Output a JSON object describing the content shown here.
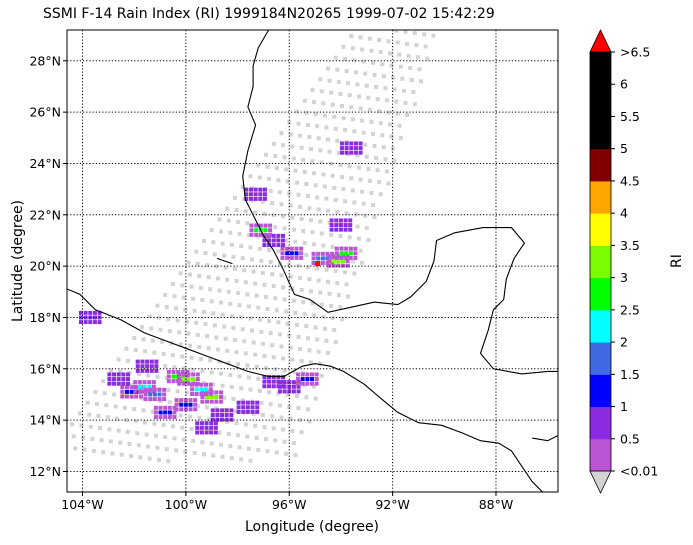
{
  "title": "SSMI F-14 Rain Index (RI) 1999184N20265 1999-07-02 15:42:29",
  "map": {
    "xlabel": "Longitude (degree)",
    "ylabel": "Latitude (degree)",
    "lon_range": [
      -104.6,
      -85.6
    ],
    "lat_range": [
      11.2,
      29.2
    ],
    "xticks": [
      {
        "value": -104,
        "label": "104°W"
      },
      {
        "value": -100,
        "label": "100°W"
      },
      {
        "value": -96,
        "label": "96°W"
      },
      {
        "value": -92,
        "label": "92°W"
      },
      {
        "value": -88,
        "label": "88°W"
      }
    ],
    "yticks": [
      {
        "value": 12,
        "label": "12°N"
      },
      {
        "value": 14,
        "label": "14°N"
      },
      {
        "value": 16,
        "label": "16°N"
      },
      {
        "value": 18,
        "label": "18°N"
      },
      {
        "value": 20,
        "label": "20°N"
      },
      {
        "value": 22,
        "label": "22°N"
      },
      {
        "value": 24,
        "label": "24°N"
      },
      {
        "value": 26,
        "label": "26°N"
      },
      {
        "value": 28,
        "label": "28°N"
      }
    ],
    "grid": true,
    "swath_color": "#d3d3d3",
    "storm_center": {
      "lon": -94.9,
      "lat": 20.1,
      "color": "#ff0000"
    }
  },
  "colorbar": {
    "label": "RI",
    "ticks": [
      "<0.01",
      "0.5",
      "1",
      "1.5",
      "2",
      "2.5",
      "3",
      "3.5",
      "4",
      "4.5",
      "5",
      "5.5",
      "6",
      ">6.5"
    ],
    "colors": [
      "#ba55d3",
      "#8a2be2",
      "#0000ff",
      "#4169e1",
      "#00ffff",
      "#00ff00",
      "#7cfc00",
      "#ffff00",
      "#ffa500",
      "#800000",
      "#000000",
      "#000000",
      "#000000"
    ],
    "under_color": "#d3d3d3",
    "over_color": "#ff0000"
  },
  "rain_clusters": [
    {
      "lon": -102.1,
      "lat": 15.1,
      "value": 1.0
    },
    {
      "lon": -101.6,
      "lat": 15.3,
      "value": 2.0
    },
    {
      "lon": -101.2,
      "lat": 15.0,
      "value": 1.5
    },
    {
      "lon": -102.6,
      "lat": 15.6,
      "value": 0.5
    },
    {
      "lon": -101.5,
      "lat": 16.1,
      "value": 0.5
    },
    {
      "lon": -100.3,
      "lat": 15.7,
      "value": 2.5
    },
    {
      "lon": -99.9,
      "lat": 15.6,
      "value": 3.0
    },
    {
      "lon": -99.0,
      "lat": 14.9,
      "value": 3.0
    },
    {
      "lon": -99.4,
      "lat": 15.2,
      "value": 2.0
    },
    {
      "lon": -100.0,
      "lat": 14.6,
      "value": 1.0
    },
    {
      "lon": -98.6,
      "lat": 14.2,
      "value": 0.5
    },
    {
      "lon": -97.6,
      "lat": 14.5,
      "value": 0.5
    },
    {
      "lon": -99.2,
      "lat": 13.7,
      "value": 0.5
    },
    {
      "lon": -100.8,
      "lat": 14.3,
      "value": 1.0
    },
    {
      "lon": -96.0,
      "lat": 15.3,
      "value": 0.5
    },
    {
      "lon": -95.3,
      "lat": 15.6,
      "value": 1.0
    },
    {
      "lon": -96.6,
      "lat": 15.5,
      "value": 0.5
    },
    {
      "lon": -95.9,
      "lat": 20.5,
      "value": 1.0
    },
    {
      "lon": -94.7,
      "lat": 20.3,
      "value": 1.5
    },
    {
      "lon": -94.1,
      "lat": 20.2,
      "value": 3.0
    },
    {
      "lon": -93.8,
      "lat": 20.5,
      "value": 2.5
    },
    {
      "lon": -96.6,
      "lat": 21.0,
      "value": 0.5
    },
    {
      "lon": -97.1,
      "lat": 21.4,
      "value": 2.5
    },
    {
      "lon": -94.0,
      "lat": 21.6,
      "value": 0.5
    },
    {
      "lon": -93.6,
      "lat": 24.6,
      "value": 0.5
    },
    {
      "lon": -97.3,
      "lat": 22.8,
      "value": 0.5
    },
    {
      "lon": -103.7,
      "lat": 18.0,
      "value": 0.5
    }
  ]
}
